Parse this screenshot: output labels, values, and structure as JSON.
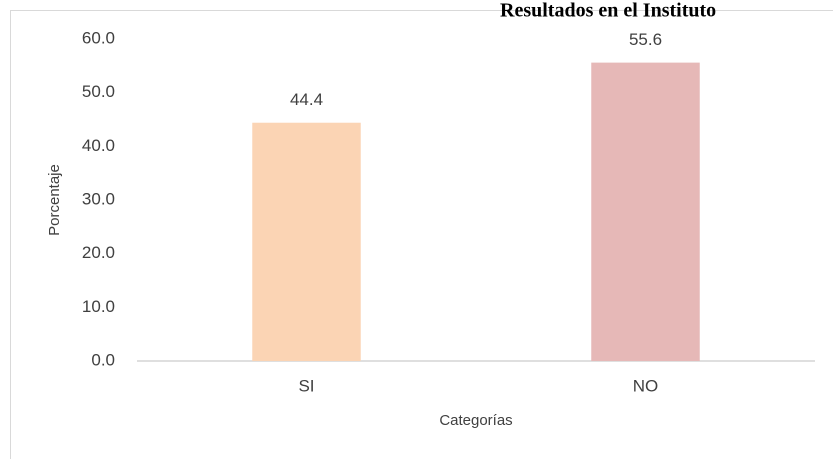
{
  "chart_data": {
    "type": "bar",
    "title": "Resultados en el Instituto",
    "categories": [
      "SI",
      "NO"
    ],
    "values": [
      44.4,
      55.6
    ],
    "colors": [
      "#fbd4b4",
      "#e6b8b7"
    ],
    "ylabel": "Porcentaje",
    "xlabel": "Categorías",
    "ylim": [
      0,
      60
    ],
    "yticks": [
      {
        "value": 0,
        "label": "0.0"
      },
      {
        "value": 10,
        "label": "10.0"
      },
      {
        "value": 20,
        "label": "20.0"
      },
      {
        "value": 30,
        "label": "30.0"
      },
      {
        "value": 40,
        "label": "40.0"
      },
      {
        "value": 50,
        "label": "50.0"
      },
      {
        "value": 60,
        "label": "60.0"
      }
    ],
    "grid": false
  }
}
